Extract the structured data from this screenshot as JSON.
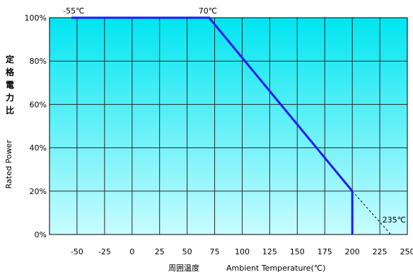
{
  "chart_data": {
    "type": "line",
    "title": "",
    "xlabel_jp": "周囲温度",
    "xlabel": "Ambient Temperature(℃)",
    "ylabel_jp_chars": [
      "定",
      "格",
      "電",
      "力",
      "比"
    ],
    "ylabel": "Rated Power",
    "xlim": [
      -75,
      250
    ],
    "ylim": [
      0,
      100
    ],
    "x_ticks": [
      -50,
      -25,
      0,
      25,
      50,
      75,
      100,
      125,
      150,
      175,
      200,
      225,
      250
    ],
    "y_ticks": [
      0,
      20,
      40,
      60,
      80,
      100
    ],
    "y_tick_labels": [
      "0%",
      "20%",
      "40%",
      "60%",
      "80%",
      "100%"
    ],
    "grid": true,
    "series": [
      {
        "x": [
          -55,
          70,
          200,
          200
        ],
        "y": [
          100,
          100,
          20,
          0
        ],
        "color": "#1a1aff"
      }
    ],
    "extrapolation": {
      "x": [
        200,
        235
      ],
      "y": [
        20,
        0
      ],
      "style": "dashed"
    },
    "annotations": [
      "-55℃",
      "70℃",
      "235℃"
    ]
  },
  "colors": {
    "plot_top": "#00e5f0",
    "plot_bottom": "#c8fcff",
    "grid": "#2a2a2a",
    "series": "#1a1aff"
  }
}
